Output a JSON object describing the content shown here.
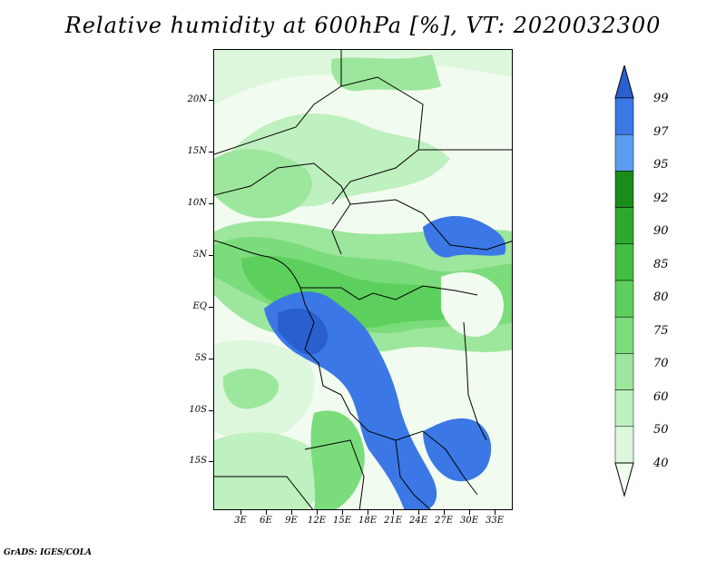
{
  "title": "Relative humidity at 600hPa [%], VT: 2020032300",
  "credit": "GrADS: IGES/COLA",
  "map": {
    "lat_labels": [
      "20N",
      "15N",
      "10N",
      "5N",
      "EQ",
      "5S",
      "10S",
      "15S"
    ],
    "lon_labels": [
      "3E",
      "6E",
      "9E",
      "12E",
      "15E",
      "18E",
      "21E",
      "24E",
      "27E",
      "30E",
      "33E"
    ],
    "field": "relative-humidity-600hPa"
  },
  "colorbar": {
    "labels": [
      "99",
      "97",
      "95",
      "92",
      "90",
      "85",
      "80",
      "75",
      "70",
      "60",
      "50",
      "40"
    ],
    "colors": [
      "#2a5fcf",
      "#3b78e6",
      "#5b9ef0",
      "#1a8c1a",
      "#2ea82e",
      "#42bf42",
      "#5ccf5c",
      "#7bdc7b",
      "#9de69d",
      "#bff0bf",
      "#dcf7dc",
      "#f2fbf0"
    ]
  }
}
